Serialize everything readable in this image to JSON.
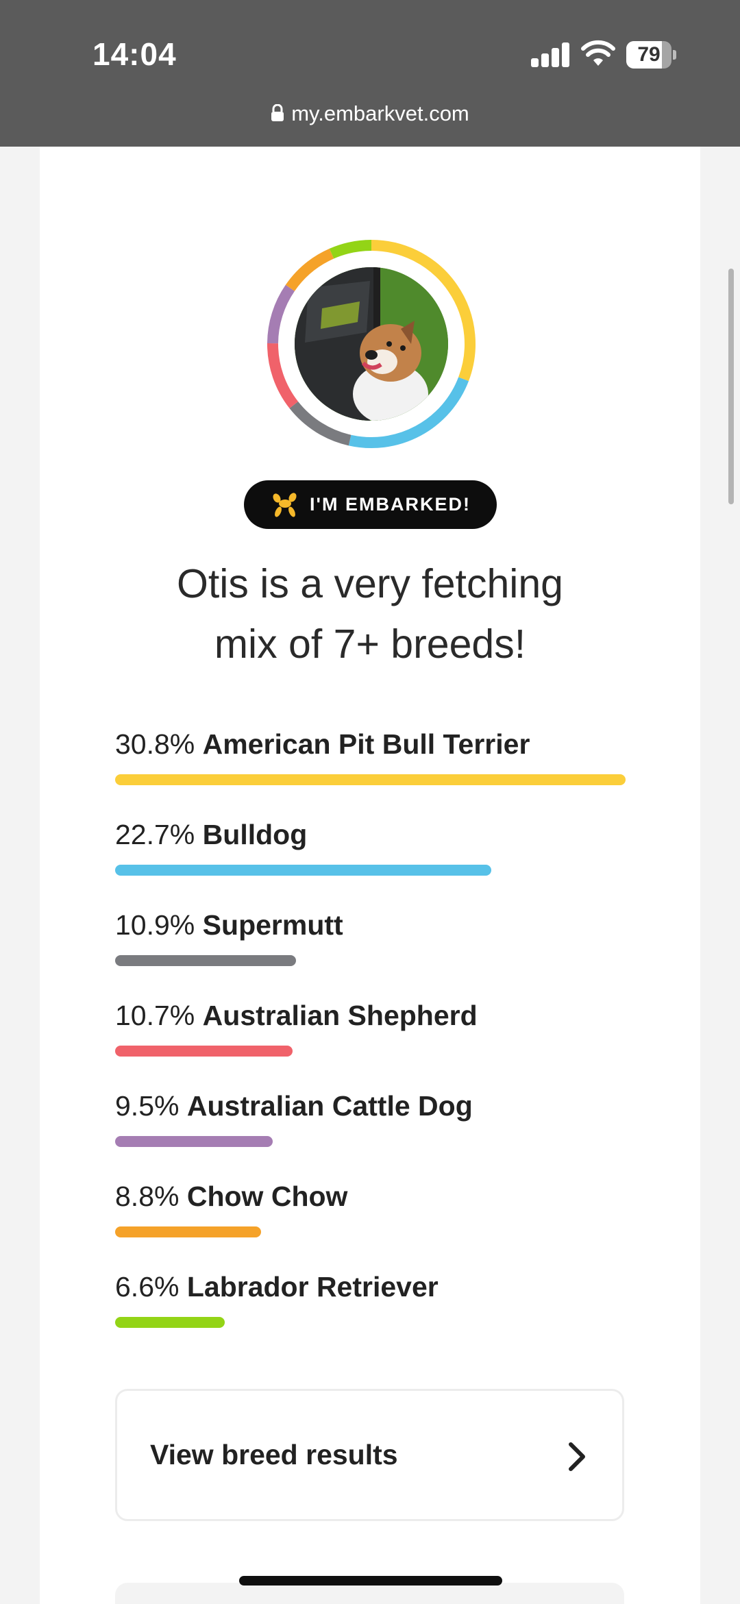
{
  "status_bar": {
    "time": "14:04",
    "battery": "79",
    "battery_level": 0.79
  },
  "browser": {
    "url": "my.embarkvet.com"
  },
  "profile": {
    "ring_colors": [
      "#FBCE3A",
      "#57C1E8",
      "#7A7B7F",
      "#F0626A",
      "#A57DB3",
      "#F5A229",
      "#93D416"
    ],
    "badge_label": "I'M EMBARKED!",
    "headline_line1": "Otis is a very fetching",
    "headline_line2": "mix of 7+ breeds!"
  },
  "breeds": [
    {
      "percent": "30.8%",
      "name": "American Pit Bull Terrier",
      "value": 30.8,
      "color": "#FBCE3A"
    },
    {
      "percent": "22.7%",
      "name": "Bulldog",
      "value": 22.7,
      "color": "#57C1E8"
    },
    {
      "percent": "10.9%",
      "name": "Supermutt",
      "value": 10.9,
      "color": "#7A7B7F"
    },
    {
      "percent": "10.7%",
      "name": "Australian Shepherd",
      "value": 10.7,
      "color": "#F0626A"
    },
    {
      "percent": "9.5%",
      "name": "Australian Cattle Dog",
      "value": 9.5,
      "color": "#A57DB3"
    },
    {
      "percent": "8.8%",
      "name": "Chow Chow",
      "value": 8.8,
      "color": "#F5A229"
    },
    {
      "percent": "6.6%",
      "name": "Labrador Retriever",
      "value": 6.6,
      "color": "#93D416"
    }
  ],
  "results_button": {
    "label": "View breed results",
    "icon": "chevron-right-icon"
  },
  "icons": {
    "badge": "balloon-dog-icon",
    "lock": "lock-icon"
  }
}
